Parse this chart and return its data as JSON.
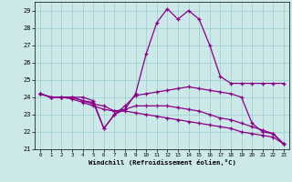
{
  "xlabel": "Windchill (Refroidissement éolien,°C)",
  "background_color": "#cce8e8",
  "line_color": "#880088",
  "grid_color": "#99cccc",
  "xlim": [
    -0.5,
    23.5
  ],
  "ylim": [
    21,
    29.5
  ],
  "yticks": [
    21,
    22,
    23,
    24,
    25,
    26,
    27,
    28,
    29
  ],
  "xticks": [
    0,
    1,
    2,
    3,
    4,
    5,
    6,
    7,
    8,
    9,
    10,
    11,
    12,
    13,
    14,
    15,
    16,
    17,
    18,
    19,
    20,
    21,
    22,
    23
  ],
  "series": [
    {
      "x": [
        0,
        1,
        2,
        3,
        4,
        5,
        6,
        7,
        8,
        9,
        10,
        11,
        12,
        13,
        14,
        15,
        16,
        17,
        18,
        19,
        20,
        21,
        22,
        23
      ],
      "y": [
        24.2,
        24.0,
        24.0,
        24.0,
        24.0,
        23.8,
        22.2,
        23.0,
        23.3,
        24.2,
        26.5,
        28.3,
        29.1,
        28.5,
        29.0,
        28.5,
        27.0,
        25.2,
        24.8,
        24.8,
        24.8,
        24.8,
        24.8,
        24.8
      ]
    },
    {
      "x": [
        0,
        1,
        2,
        3,
        4,
        5,
        6,
        7,
        8,
        9,
        10,
        11,
        12,
        13,
        14,
        15,
        16,
        17,
        18,
        19,
        20,
        21,
        22,
        23
      ],
      "y": [
        24.2,
        24.0,
        24.0,
        24.0,
        23.8,
        23.7,
        22.2,
        23.0,
        23.5,
        24.1,
        24.2,
        24.3,
        24.4,
        24.5,
        24.6,
        24.5,
        24.4,
        24.3,
        24.2,
        24.0,
        22.5,
        22.0,
        21.9,
        21.3
      ]
    },
    {
      "x": [
        0,
        1,
        2,
        3,
        4,
        5,
        6,
        7,
        8,
        9,
        10,
        11,
        12,
        13,
        14,
        15,
        16,
        17,
        18,
        19,
        20,
        21,
        22,
        23
      ],
      "y": [
        24.2,
        24.0,
        24.0,
        23.9,
        23.7,
        23.5,
        23.3,
        23.2,
        23.2,
        23.1,
        23.0,
        22.9,
        22.8,
        22.7,
        22.6,
        22.5,
        22.4,
        22.3,
        22.2,
        22.0,
        21.9,
        21.8,
        21.7,
        21.3
      ]
    },
    {
      "x": [
        0,
        1,
        2,
        3,
        4,
        5,
        6,
        7,
        8,
        9,
        10,
        11,
        12,
        13,
        14,
        15,
        16,
        17,
        18,
        19,
        20,
        21,
        22,
        23
      ],
      "y": [
        24.2,
        24.0,
        24.0,
        24.0,
        23.8,
        23.6,
        23.5,
        23.2,
        23.3,
        23.5,
        23.5,
        23.5,
        23.5,
        23.4,
        23.3,
        23.2,
        23.0,
        22.8,
        22.7,
        22.5,
        22.3,
        22.1,
        21.9,
        21.3
      ]
    }
  ]
}
